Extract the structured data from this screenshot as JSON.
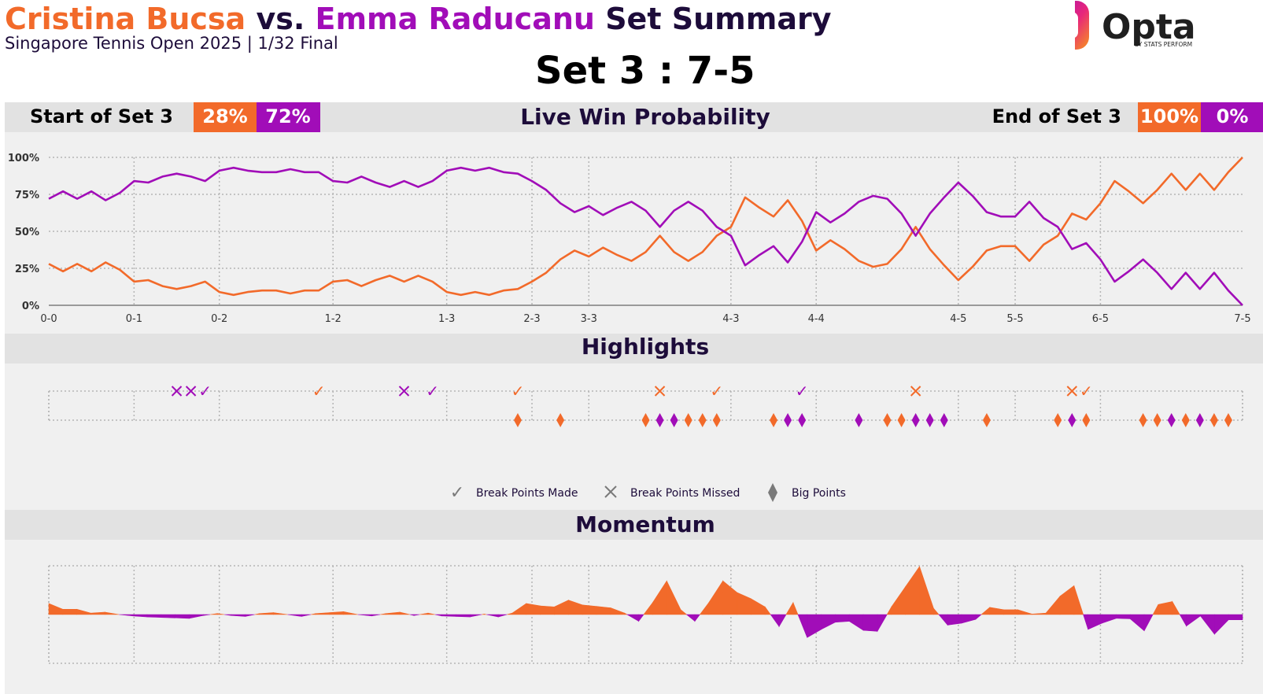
{
  "header": {
    "player1": "Cristina Bucsa",
    "vs": "vs.",
    "player2": "Emma Raducanu",
    "suffix": "Set Summary",
    "subtitle": "Singapore Tennis Open 2025 | 1/32 Final",
    "set_score": "Set 3 : 7-5"
  },
  "logo": {
    "text": "Opta",
    "tagline": "BY STATS PERFORM"
  },
  "colors": {
    "player1": "#f26a2a",
    "player2": "#a10db8",
    "panel": "#f0f0f0",
    "band": "#e2e2e2",
    "heading": "#1d0c3a"
  },
  "win_prob_bar": {
    "start_label": "Start of Set 3",
    "start_p1": "28%",
    "start_p2": "72%",
    "title": "Live Win Probability",
    "end_label": "End of Set 3",
    "end_p1": "100%",
    "end_p2": "0%"
  },
  "highlights": {
    "title": "Highlights",
    "legend": [
      "Break Points Made",
      "Break Points Missed",
      "Big Points"
    ]
  },
  "momentum": {
    "title": "Momentum"
  },
  "chart_data": [
    {
      "type": "line",
      "title": "Live Win Probability",
      "x_ticks": [
        {
          "point": 0,
          "label": "0-0"
        },
        {
          "point": 6,
          "label": "0-1"
        },
        {
          "point": 12,
          "label": "0-2"
        },
        {
          "point": 20,
          "label": "1-2"
        },
        {
          "point": 28,
          "label": "1-3"
        },
        {
          "point": 34,
          "label": "2-3"
        },
        {
          "point": 38,
          "label": "3-3"
        },
        {
          "point": 48,
          "label": "4-3"
        },
        {
          "point": 54,
          "label": "4-4"
        },
        {
          "point": 64,
          "label": "4-5"
        },
        {
          "point": 68,
          "label": "5-5"
        },
        {
          "point": 74,
          "label": "6-5"
        },
        {
          "point": 84,
          "label": "7-5"
        }
      ],
      "y_ticks": [
        "0%",
        "25%",
        "50%",
        "75%",
        "100%"
      ],
      "ylim": [
        0,
        100
      ],
      "series": [
        {
          "name": "Cristina Bucsa",
          "values": [
            28,
            23,
            28,
            23,
            29,
            24,
            16,
            17,
            13,
            11,
            13,
            16,
            9,
            7,
            9,
            10,
            10,
            8,
            10,
            10,
            16,
            17,
            13,
            17,
            20,
            16,
            20,
            16,
            9,
            7,
            9,
            7,
            10,
            11,
            16,
            22,
            31,
            37,
            33,
            39,
            34,
            30,
            36,
            47,
            36,
            30,
            36,
            47,
            53,
            73,
            66,
            60,
            71,
            57,
            37,
            44,
            38,
            30,
            26,
            28,
            38,
            53,
            38,
            27,
            17,
            26,
            37,
            40,
            40,
            30,
            41,
            47,
            62,
            58,
            69,
            84,
            77,
            69,
            78,
            89,
            78,
            89,
            78,
            90,
            100
          ]
        },
        {
          "name": "Emma Raducanu",
          "values": [
            72,
            77,
            72,
            77,
            71,
            76,
            84,
            83,
            87,
            89,
            87,
            84,
            91,
            93,
            91,
            90,
            90,
            92,
            90,
            90,
            84,
            83,
            87,
            83,
            80,
            84,
            80,
            84,
            91,
            93,
            91,
            93,
            90,
            89,
            84,
            78,
            69,
            63,
            67,
            61,
            66,
            70,
            64,
            53,
            64,
            70,
            64,
            53,
            47,
            27,
            34,
            40,
            29,
            43,
            63,
            56,
            62,
            70,
            74,
            72,
            62,
            47,
            62,
            73,
            83,
            74,
            63,
            60,
            60,
            70,
            59,
            53,
            38,
            42,
            31,
            16,
            23,
            31,
            22,
            11,
            22,
            11,
            22,
            10,
            0
          ]
        }
      ]
    },
    {
      "type": "scatter",
      "title": "Highlights",
      "series": [
        {
          "name": "Break Points Made",
          "row": "top",
          "points": [
            {
              "x": 11,
              "player": "Emma Raducanu"
            },
            {
              "x": 19,
              "player": "Cristina Bucsa"
            },
            {
              "x": 27,
              "player": "Emma Raducanu"
            },
            {
              "x": 33,
              "player": "Cristina Bucsa"
            },
            {
              "x": 47,
              "player": "Cristina Bucsa"
            },
            {
              "x": 53,
              "player": "Emma Raducanu"
            },
            {
              "x": 73,
              "player": "Cristina Bucsa"
            }
          ]
        },
        {
          "name": "Break Points Missed",
          "row": "top",
          "points": [
            {
              "x": 9,
              "player": "Emma Raducanu"
            },
            {
              "x": 10,
              "player": "Emma Raducanu"
            },
            {
              "x": 25,
              "player": "Emma Raducanu"
            },
            {
              "x": 43,
              "player": "Cristina Bucsa"
            },
            {
              "x": 61,
              "player": "Cristina Bucsa"
            },
            {
              "x": 72,
              "player": "Cristina Bucsa"
            }
          ]
        },
        {
          "name": "Big Points",
          "row": "bottom",
          "points": [
            {
              "x": 33,
              "player": "Cristina Bucsa"
            },
            {
              "x": 36,
              "player": "Cristina Bucsa"
            },
            {
              "x": 42,
              "player": "Cristina Bucsa"
            },
            {
              "x": 43,
              "player": "Emma Raducanu"
            },
            {
              "x": 44,
              "player": "Emma Raducanu"
            },
            {
              "x": 45,
              "player": "Cristina Bucsa"
            },
            {
              "x": 46,
              "player": "Cristina Bucsa"
            },
            {
              "x": 47,
              "player": "Cristina Bucsa"
            },
            {
              "x": 51,
              "player": "Cristina Bucsa"
            },
            {
              "x": 52,
              "player": "Emma Raducanu"
            },
            {
              "x": 53,
              "player": "Emma Raducanu"
            },
            {
              "x": 57,
              "player": "Emma Raducanu"
            },
            {
              "x": 59,
              "player": "Cristina Bucsa"
            },
            {
              "x": 60,
              "player": "Cristina Bucsa"
            },
            {
              "x": 61,
              "player": "Emma Raducanu"
            },
            {
              "x": 62,
              "player": "Emma Raducanu"
            },
            {
              "x": 63,
              "player": "Emma Raducanu"
            },
            {
              "x": 66,
              "player": "Cristina Bucsa"
            },
            {
              "x": 71,
              "player": "Cristina Bucsa"
            },
            {
              "x": 72,
              "player": "Emma Raducanu"
            },
            {
              "x": 73,
              "player": "Cristina Bucsa"
            },
            {
              "x": 77,
              "player": "Cristina Bucsa"
            },
            {
              "x": 78,
              "player": "Cristina Bucsa"
            },
            {
              "x": 79,
              "player": "Emma Raducanu"
            },
            {
              "x": 80,
              "player": "Cristina Bucsa"
            },
            {
              "x": 81,
              "player": "Emma Raducanu"
            },
            {
              "x": 82,
              "player": "Cristina Bucsa"
            },
            {
              "x": 83,
              "player": "Cristina Bucsa"
            }
          ]
        }
      ]
    },
    {
      "type": "area",
      "title": "Momentum",
      "ylim": [
        -1,
        1
      ],
      "values": [
        0.23,
        0.11,
        0.11,
        0.03,
        0.05,
        0,
        -0.03,
        -0.05,
        -0.06,
        -0.07,
        -0.08,
        -0.02,
        0.02,
        -0.02,
        -0.04,
        0.02,
        0.04,
        0,
        -0.04,
        0.02,
        0.04,
        0.06,
        0,
        -0.03,
        0.02,
        0.05,
        -0.02,
        0.03,
        -0.03,
        -0.04,
        -0.05,
        0.01,
        -0.05,
        0.03,
        0.23,
        0.18,
        0.16,
        0.3,
        0.2,
        0.17,
        0.14,
        0.03,
        -0.14,
        0.25,
        0.7,
        0.1,
        -0.14,
        0.25,
        0.7,
        0.46,
        0.33,
        0.16,
        -0.25,
        0.25,
        -0.48,
        -0.31,
        -0.16,
        -0.14,
        -0.33,
        -0.35,
        0.16,
        0.58,
        1,
        0.13,
        -0.22,
        -0.18,
        -0.1,
        0.15,
        0.1,
        0.1,
        0.01,
        0.03,
        0.38,
        0.6,
        -0.31,
        -0.18,
        -0.08,
        -0.09,
        -0.34,
        0.21,
        0.27,
        -0.24,
        -0.03,
        -0.41,
        -0.11,
        -0.11
      ]
    }
  ]
}
